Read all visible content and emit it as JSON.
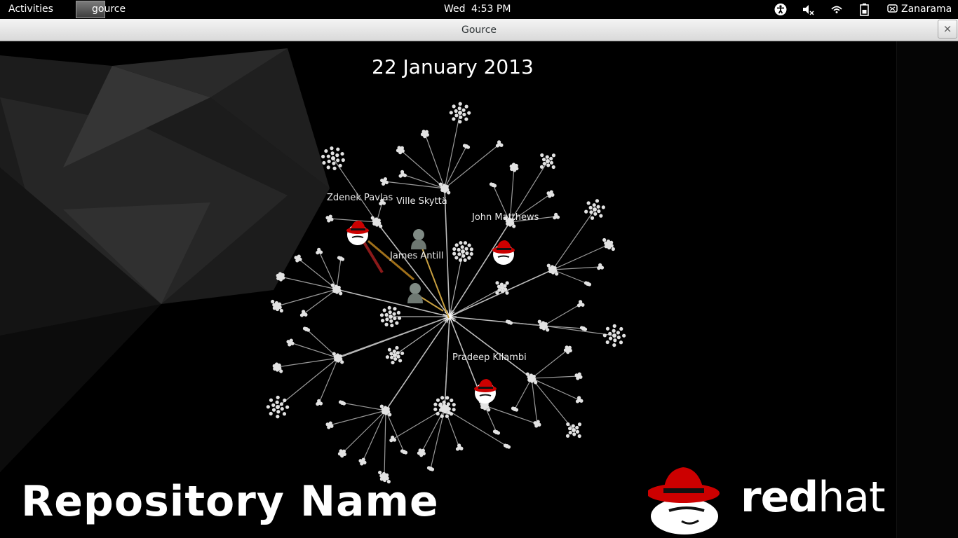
{
  "topbar": {
    "activities_label": "Activities",
    "app_name": "gource",
    "clock_day": "Wed",
    "clock_time": "4:53 PM",
    "tray_icons": [
      "accessibility-icon",
      "volume-muted-icon",
      "network-icon",
      "battery-icon"
    ],
    "user_name": "Zanarama"
  },
  "window": {
    "title": "Gource",
    "close_label": "×"
  },
  "visualization": {
    "date": "22 January 2013",
    "users": [
      {
        "name": "Zdenek Pavlas"
      },
      {
        "name": "Ville Skyttä"
      },
      {
        "name": "John Matthews"
      },
      {
        "name": "James Antill"
      },
      {
        "name": "Pradeep Kilambi"
      }
    ],
    "repository_name": "Repository Name",
    "logo_text_bold": "red",
    "logo_text_light": "hat"
  },
  "colors": {
    "background": "#000000",
    "redhat_red": "#cc0000",
    "node_color": "#dddddd"
  }
}
